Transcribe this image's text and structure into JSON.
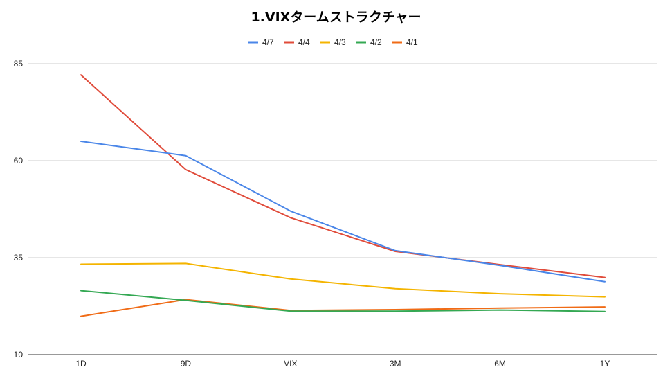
{
  "chart_data": {
    "type": "line",
    "title": "1.VIXタームストラクチャー",
    "xlabel": "",
    "ylabel": "",
    "categories": [
      "1D",
      "9D",
      "VIX",
      "3M",
      "6M",
      "1Y"
    ],
    "ylim": [
      10,
      85
    ],
    "yticks": [
      10,
      35,
      60,
      85
    ],
    "grid": true,
    "legend_position": "top",
    "series": [
      {
        "name": "4/7",
        "color": "#4a86e8",
        "values": [
          65.0,
          61.3,
          47.0,
          36.8,
          33.0,
          28.8
        ]
      },
      {
        "name": "4/4",
        "color": "#e04b3a",
        "values": [
          82.1,
          57.7,
          45.3,
          36.6,
          33.2,
          29.9
        ]
      },
      {
        "name": "4/3",
        "color": "#f4b400",
        "values": [
          33.3,
          33.5,
          29.5,
          27.0,
          25.7,
          24.9
        ]
      },
      {
        "name": "4/2",
        "color": "#34a853",
        "values": [
          26.5,
          24.0,
          21.2,
          21.2,
          21.5,
          21.1
        ]
      },
      {
        "name": "4/1",
        "color": "#f06b16",
        "values": [
          19.9,
          24.2,
          21.4,
          21.6,
          22.0,
          22.3
        ]
      }
    ]
  }
}
